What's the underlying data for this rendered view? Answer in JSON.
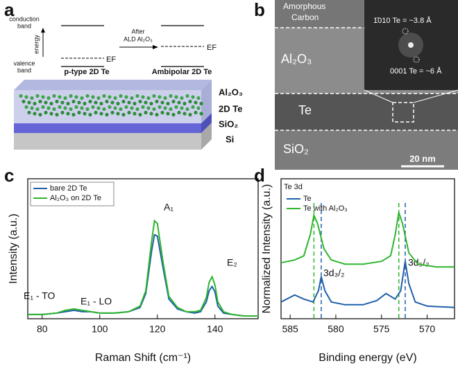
{
  "panels": {
    "labels": [
      "a",
      "b",
      "c",
      "d"
    ],
    "a": {
      "conduction_band": [
        "conduction",
        "band"
      ],
      "energy": "energy",
      "valence_band": [
        "valence",
        "band"
      ],
      "fermi_left": "EF",
      "fermi_right": "EF",
      "left_caption": "p-type 2D Te",
      "arrow_caption": [
        "After",
        "ALD Al₂O₃"
      ],
      "right_caption": "Ambipolar 2D Te",
      "layers": [
        "Al₂O₃",
        "2D Te",
        "SiO₂",
        "Si"
      ]
    },
    "b": {
      "regions": [
        "Amorphous",
        "Carbon",
        "Al₂O₃",
        "Te",
        "SiO₂"
      ],
      "fft_labels": [
        "1̄010 Te = ~3.8 Å",
        "0001 Te = ~6 Å"
      ],
      "scale_bar": "20 nm"
    }
  },
  "chart_data": [
    {
      "type": "line",
      "xlabel": "Raman Shift (cm⁻¹)",
      "ylabel": "Intensity (a.u.)",
      "xlim": [
        75,
        155
      ],
      "ylim": [
        0,
        1
      ],
      "xticks": [
        80,
        100,
        120,
        140
      ],
      "legend": "upper left",
      "annotations": [
        "E₁ - TO",
        "E₁ - LO",
        "A₁",
        "E₂"
      ],
      "series": [
        {
          "name": "bare 2D Te",
          "color": "#1f5fa8",
          "x": [
            75,
            80,
            85,
            88,
            91,
            94,
            97,
            100,
            105,
            110,
            114,
            116,
            118,
            119,
            120,
            122,
            124,
            127,
            130,
            133,
            135,
            137,
            138,
            139,
            140,
            141,
            143,
            146,
            150,
            155
          ],
          "values": [
            0.03,
            0.03,
            0.04,
            0.05,
            0.06,
            0.05,
            0.05,
            0.04,
            0.04,
            0.05,
            0.08,
            0.18,
            0.48,
            0.6,
            0.59,
            0.36,
            0.14,
            0.07,
            0.05,
            0.04,
            0.05,
            0.12,
            0.2,
            0.23,
            0.19,
            0.09,
            0.04,
            0.03,
            0.02,
            0.02
          ]
        },
        {
          "name": "Al₂O₃ on 2D Te",
          "color": "#2db52d",
          "x": [
            75,
            80,
            85,
            88,
            91,
            94,
            97,
            100,
            105,
            110,
            114,
            116,
            118,
            119,
            120,
            122,
            124,
            127,
            130,
            133,
            135,
            137,
            138,
            139,
            140,
            141,
            143,
            146,
            150,
            155
          ],
          "values": [
            0.03,
            0.03,
            0.04,
            0.06,
            0.07,
            0.06,
            0.05,
            0.04,
            0.04,
            0.05,
            0.09,
            0.2,
            0.55,
            0.7,
            0.68,
            0.4,
            0.16,
            0.08,
            0.05,
            0.05,
            0.06,
            0.15,
            0.26,
            0.3,
            0.24,
            0.12,
            0.05,
            0.03,
            0.02,
            0.02
          ]
        }
      ]
    },
    {
      "type": "line",
      "xlabel": "Binding energy (eV)",
      "ylabel": "Normalized Intensity (a.u.)",
      "xlim": [
        586,
        567
      ],
      "ylim": [
        0,
        1
      ],
      "xticks": [
        585,
        580,
        575,
        570
      ],
      "legend": "upper left",
      "legend_title": "Te 3d",
      "annotations": [
        "3d₃/₂",
        "3d₅/₂"
      ],
      "reference_lines": [
        582.4,
        581.6,
        573.1,
        572.4
      ],
      "series": [
        {
          "name": "Te",
          "color": "#1f5fa8",
          "x": [
            586,
            584.5,
            583.5,
            582.5,
            581.9,
            581.6,
            581.2,
            580.5,
            579,
            577,
            575.5,
            574.5,
            573.5,
            572.9,
            572.4,
            572,
            571.3,
            570,
            567
          ],
          "values": [
            0.12,
            0.17,
            0.14,
            0.12,
            0.2,
            0.3,
            0.2,
            0.12,
            0.1,
            0.1,
            0.13,
            0.18,
            0.14,
            0.2,
            0.41,
            0.25,
            0.12,
            0.09,
            0.08
          ]
        },
        {
          "name": "Te with Al₂O₃",
          "color": "#2db52d",
          "x": [
            586,
            584.5,
            583.5,
            582.8,
            582.4,
            582,
            581.3,
            580.5,
            579,
            577,
            575,
            574,
            573.5,
            573.1,
            572.7,
            572,
            571,
            569,
            567
          ],
          "values": [
            0.4,
            0.42,
            0.45,
            0.6,
            0.74,
            0.68,
            0.5,
            0.42,
            0.39,
            0.39,
            0.41,
            0.45,
            0.6,
            0.76,
            0.68,
            0.47,
            0.39,
            0.37,
            0.37
          ]
        }
      ]
    }
  ]
}
